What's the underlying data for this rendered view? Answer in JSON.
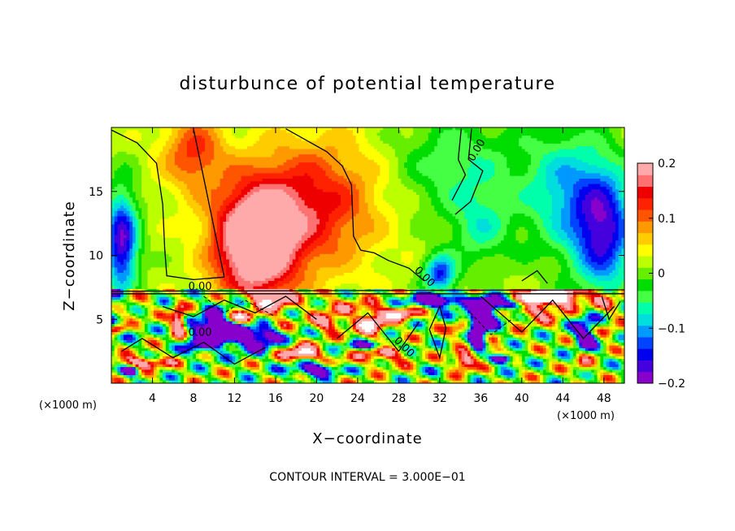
{
  "chart_data": {
    "type": "heatmap",
    "title": "disturbunce of potential temperature",
    "xlabel": "X−coordinate",
    "ylabel": "Z−coordinate",
    "x_unit_left": "(×1000 m)",
    "x_unit_right": "(×1000 m)",
    "xlim": [
      0,
      50
    ],
    "ylim": [
      0,
      20
    ],
    "x_ticks": [
      4,
      8,
      12,
      16,
      20,
      24,
      28,
      32,
      36,
      40,
      44,
      48
    ],
    "y_ticks": [
      5,
      10,
      15
    ],
    "colorbar": {
      "range": [
        -0.2,
        0.2
      ],
      "ticks": [
        {
          "value": 0.2,
          "label": "0.2"
        },
        {
          "value": 0.1,
          "label": "0.1"
        },
        {
          "value": 0,
          "label": "0"
        },
        {
          "value": -0.1,
          "label": "−0.1"
        },
        {
          "value": -0.2,
          "label": "−0.2"
        }
      ],
      "colors": [
        "#8800cc",
        "#4400dd",
        "#0000ee",
        "#0044ff",
        "#0099ff",
        "#00dddd",
        "#00ffaa",
        "#44ff44",
        "#00dd00",
        "#66ee00",
        "#bbff00",
        "#ffff00",
        "#ffcc00",
        "#ff9900",
        "#ff5500",
        "#ff2200",
        "#ee0000",
        "#ff7070",
        "#ffaaaa"
      ]
    },
    "contour_labels": [
      "0.00",
      "0.00",
      "0.00",
      "0.00",
      "0.00"
    ],
    "footer": "CONTOUR INTERVAL = 3.000E−01",
    "field_sources": [
      {
        "x": 14,
        "z": 11,
        "amp": 0.24,
        "sx": 4.0,
        "sz": 4.5
      },
      {
        "x": 20,
        "z": 14,
        "amp": 0.12,
        "sx": 6.0,
        "sz": 5.0
      },
      {
        "x": 8,
        "z": 18,
        "amp": 0.1,
        "sx": 3.0,
        "sz": 3.0
      },
      {
        "x": 1,
        "z": 11,
        "amp": -0.2,
        "sx": 1.6,
        "sz": 4.0
      },
      {
        "x": 48,
        "z": 12,
        "amp": -0.18,
        "sx": 3.0,
        "sz": 5.0
      },
      {
        "x": 44,
        "z": 15,
        "amp": -0.1,
        "sx": 4.0,
        "sz": 5.0
      },
      {
        "x": 34,
        "z": 17,
        "amp": -0.07,
        "sx": 6.0,
        "sz": 4.0
      },
      {
        "x": 32,
        "z": 8.5,
        "amp": -0.16,
        "sx": 1.6,
        "sz": 1.5
      },
      {
        "x": 36,
        "z": 12,
        "amp": -0.07,
        "sx": 3.0,
        "sz": 3.0
      }
    ],
    "base_value": 0.02,
    "boundary_z": 7.3,
    "lower_layer_seed": 7
  }
}
